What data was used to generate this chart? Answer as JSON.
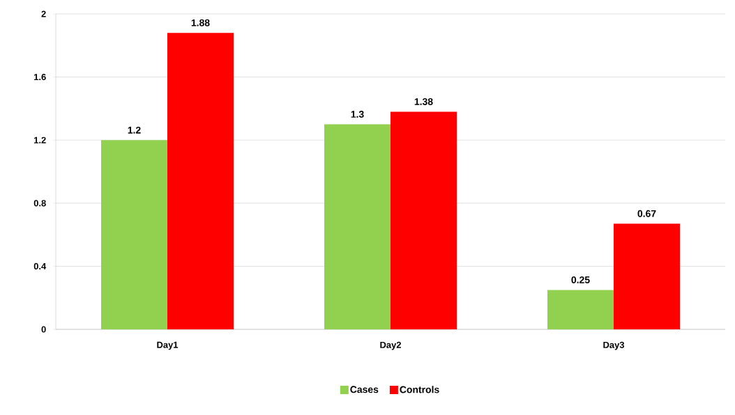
{
  "chart_data": {
    "type": "bar",
    "categories": [
      "Day1",
      "Day2",
      "Day3"
    ],
    "series": [
      {
        "name": "Cases",
        "color": "#92d050",
        "values": [
          1.2,
          1.3,
          0.25
        ]
      },
      {
        "name": "Controls",
        "color": "#ff0000",
        "values": [
          1.88,
          1.38,
          0.67
        ]
      }
    ],
    "ylim": [
      0,
      2
    ],
    "yticks": [
      0,
      0.4,
      0.8,
      1.2,
      1.6,
      2
    ],
    "grid": "y",
    "legend": "bottom",
    "data_labels": true
  }
}
